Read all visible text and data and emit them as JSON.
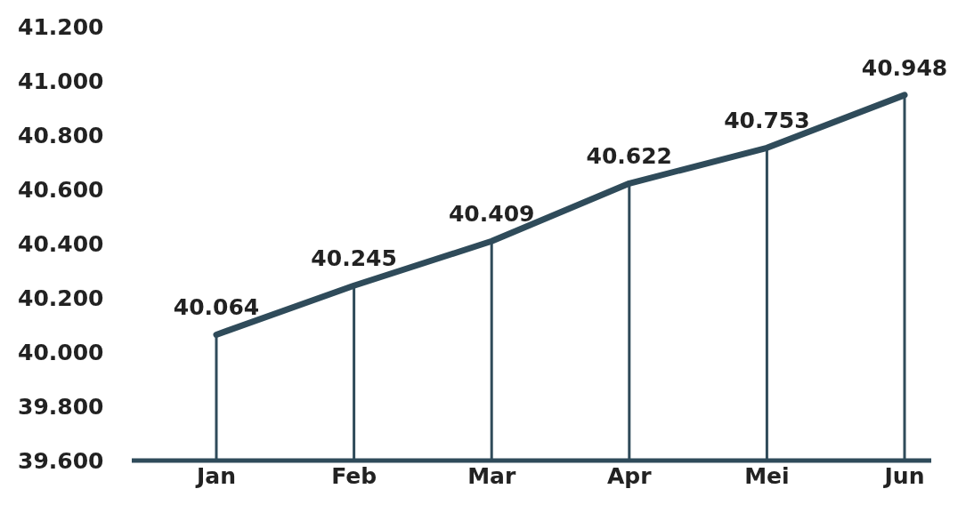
{
  "chart_data": {
    "type": "line",
    "categories": [
      "Jan",
      "Feb",
      "Mar",
      "Apr",
      "Mei",
      "Jun"
    ],
    "series": [
      {
        "color": "#2f4b5a",
        "values": [
          40064,
          40245,
          40409,
          40622,
          40753,
          40948
        ],
        "value_labels": [
          "40.064",
          "40.245",
          "40.409",
          "40.622",
          "40.753",
          "40.948"
        ]
      }
    ],
    "ylim": [
      39600,
      41200
    ],
    "yticks": [
      {
        "value": 39600,
        "label": "39.600"
      },
      {
        "value": 39800,
        "label": "39.800"
      },
      {
        "value": 40000,
        "label": "40.000"
      },
      {
        "value": 40200,
        "label": "40.200"
      },
      {
        "value": 40400,
        "label": "40.400"
      },
      {
        "value": 40600,
        "label": "40.600"
      },
      {
        "value": 40800,
        "label": "40.800"
      },
      {
        "value": 41000,
        "label": "41.000"
      },
      {
        "value": 41200,
        "label": "41.200"
      }
    ],
    "grid": "x",
    "legend": false,
    "marker": "none",
    "line_style": "solid"
  }
}
